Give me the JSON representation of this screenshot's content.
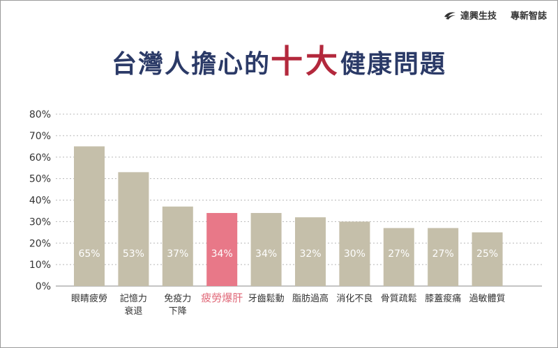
{
  "brand": {
    "company": "達興生技",
    "tagline": "專新智誌"
  },
  "title": {
    "prefix": "台灣人擔心的",
    "emphasis": "十大",
    "suffix": "健康問題"
  },
  "colors": {
    "bar": "#c5bfaa",
    "highlight": "#e87888",
    "title": "#2b3a67",
    "emphasis": "#b3283c",
    "highlight_label": "#e06878"
  },
  "chart_data": {
    "type": "bar",
    "categories": [
      [
        "眼睛疲勞"
      ],
      [
        "記憶力",
        "衰退"
      ],
      [
        "免疫力",
        "下降"
      ],
      [
        "疲勞爆肝"
      ],
      [
        "牙齒鬆動"
      ],
      [
        "脂肪過高"
      ],
      [
        "消化不良"
      ],
      [
        "骨質疏鬆"
      ],
      [
        "膝蓋痠痛"
      ],
      [
        "過敏體質"
      ]
    ],
    "values": [
      65,
      53,
      37,
      34,
      34,
      32,
      30,
      27,
      27,
      25
    ],
    "value_labels": [
      "65%",
      "53%",
      "37%",
      "34%",
      "34%",
      "32%",
      "30%",
      "27%",
      "27%",
      "25%"
    ],
    "highlight_index": 3,
    "yticks": [
      "0%",
      "10%",
      "20%",
      "30%",
      "40%",
      "50%",
      "60%",
      "70%",
      "80%"
    ],
    "ylim": [
      0,
      80
    ],
    "grid": true,
    "legend": "none"
  }
}
